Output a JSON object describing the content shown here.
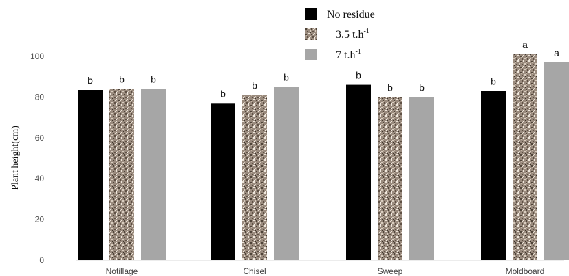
{
  "chart_data": {
    "type": "bar",
    "title": "",
    "xlabel": "",
    "ylabel": "Plant height(cm)",
    "ylim": [
      0,
      110
    ],
    "yticks": [
      0,
      20,
      40,
      60,
      80,
      100
    ],
    "grid": false,
    "legend_position": "top-right",
    "categories": [
      "Notillage",
      "Chisel",
      "Sweep",
      "Moldboard"
    ],
    "series": [
      {
        "name": "No residue",
        "legend_base": "No residue",
        "legend_sup": "",
        "color": "#000000",
        "pattern": "solid",
        "values": [
          83.5,
          77,
          86,
          83
        ],
        "labels": [
          "b",
          "b",
          "b",
          "b"
        ]
      },
      {
        "name": "3.5 t.h-1",
        "legend_base": "3.5 t.h",
        "legend_sup": "-1",
        "color": "#9a8b7e",
        "pattern": "speckled",
        "values": [
          84,
          81,
          80,
          101
        ],
        "labels": [
          "b",
          "b",
          "b",
          "a"
        ]
      },
      {
        "name": "7 t.h-1",
        "legend_base": "7 t.h",
        "legend_sup": "-1",
        "color": "#a6a6a6",
        "pattern": "solid",
        "values": [
          84,
          85,
          80,
          97
        ],
        "labels": [
          "b",
          "b",
          "b",
          "a"
        ]
      }
    ]
  }
}
